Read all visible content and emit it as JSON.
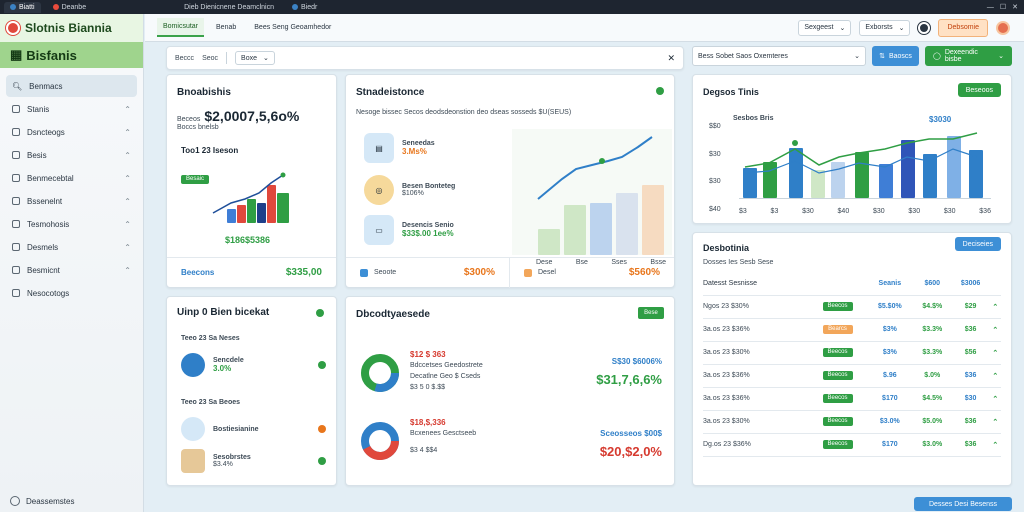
{
  "browser": {
    "tabs": [
      {
        "label": "Biatti"
      },
      {
        "label": "Deanbe"
      },
      {
        "label": "Dieb Dienicnene Deamclnicn"
      },
      {
        "label": "Biedr"
      }
    ]
  },
  "sidebar": {
    "app_title": "Slotnis Biannia",
    "brand": "Bisfanis",
    "items": [
      {
        "label": "Benmacs",
        "icon": "search-icon",
        "active": true
      },
      {
        "label": "Stanis",
        "icon": "list-icon"
      },
      {
        "label": "Dsncteogs",
        "icon": "box-icon"
      },
      {
        "label": "Besis",
        "icon": "chart-icon"
      },
      {
        "label": "Benmecebtal",
        "icon": "shop-icon"
      },
      {
        "label": "Bssenelnt",
        "icon": "cart-icon"
      },
      {
        "label": "Tesmohosis",
        "icon": "file-icon"
      },
      {
        "label": "Desmels",
        "icon": "gear-icon"
      },
      {
        "label": "Besmicnt",
        "icon": "doc-icon"
      },
      {
        "label": "Nesocotogs",
        "icon": "folder-icon"
      }
    ],
    "footer": "Deassemstes"
  },
  "topbar": {
    "tabs": [
      "Bomicsutar",
      "Benab",
      "Bees Seng Geoamhedor"
    ],
    "select1": "Sexgeest",
    "select2": "Exborsts",
    "button": "Debsomie"
  },
  "filter": {
    "label1": "Beccc",
    "label2": "Seoc",
    "select": "Boxe"
  },
  "right_filter": {
    "select": "Bess Sobet Saos Oxemteres",
    "btn1": "Baoscs",
    "btn2": "Dexeendic bisbe"
  },
  "revenue": {
    "title": "Bnoabishis",
    "label": "Beceos",
    "big": "$2,0007,5,6o%",
    "sub": "Boccs bnelsb",
    "total": "Too1 23 Iseson",
    "badge": "Besaic",
    "chart_value": "$186$5386",
    "foot_label": "Beecons",
    "foot_value": "$335,00"
  },
  "stores": {
    "title": "Stnadeistonce",
    "sub": "Nesoge bissec Secos deodsdeonstion deo dseas sosseds $U(SEUS)",
    "items": [
      {
        "name": "Seneedas",
        "pct": "3.Ms%"
      },
      {
        "name": "Besen Bonteteg",
        "pct": "$106%"
      },
      {
        "name": "Desencis Senio",
        "pct": "$33$.00 1ee%"
      }
    ],
    "xlabels": [
      "Dese",
      "Bse",
      "Sses",
      "Bsse"
    ],
    "foot1_label": "Seoote",
    "foot1_value": "$300%",
    "foot2_label": "Desel",
    "foot2_value": "$560%"
  },
  "unit": {
    "title": "Uinp 0 Bien bicekat",
    "group1": "Teeo 23 Sa Neses",
    "item1_name": "Sencdele",
    "item1_pct": "3.0%",
    "group2": "Teeo 23 Sa Beoes",
    "item2_name": "Bostiesianine",
    "item3_name": "Sesobrstes",
    "item3_pct": "$3.4%"
  },
  "distribution": {
    "title": "Dbcodtyaesede",
    "badge": "Bese",
    "d1_line1": "$12 $ 363",
    "d1_line2": "Bdccetses Geedostrete",
    "d1_line3": "Decatlne Geo $ Cseds",
    "d1_line4": "$3 5 0 $.$$",
    "d1_right_label": "S$30 $6006%",
    "d1_right_value": "$31,7,6,6%",
    "d2_line1": "$18,$,336",
    "d2_line2": "Bcxenees Gesctseeb",
    "d2_line3": "$3 4 $$4",
    "d2_right_label": "Sceosseos $00$",
    "d2_right_value": "$20,$2,0%"
  },
  "barchart": {
    "title": "Degsos Tinis",
    "badge": "Beseoos",
    "legend": "Sesbos Bris",
    "legend_value": "$3030",
    "ylabels": [
      "$$0",
      "$30",
      "$30",
      "$40"
    ],
    "xlabels": [
      "$3",
      "$3",
      "$30",
      "$40",
      "$30",
      "$30",
      "$30",
      "$36"
    ]
  },
  "table": {
    "title": "Desbotinia",
    "button": "Deciseies",
    "sub": "Dosses   Ies Sesb Sese",
    "headers": [
      "Datesst Sesnisse",
      "",
      "Seanis",
      "$600",
      "$3006",
      ""
    ],
    "rows": [
      {
        "c1": "Ngos 23 $30%",
        "pill": "Beecos",
        "pill_color": "g",
        "c3": "$5.$0%",
        "c4": "$4.$%",
        "c5": "$29",
        "c5color": "g"
      },
      {
        "c1": "3a.os 23 $36%",
        "pill": "Bearcs",
        "pill_color": "o",
        "c3": "$3%",
        "c4": "$3.3%",
        "c5": "$36",
        "c5color": "g"
      },
      {
        "c1": "3a.os 23 $30%",
        "pill": "Beecos",
        "pill_color": "g",
        "c3": "$3%",
        "c4": "$3.3%",
        "c5": "$56",
        "c5color": "g"
      },
      {
        "c1": "3a.os 23 $36%",
        "pill": "Beecos",
        "pill_color": "g",
        "c3": "$.96",
        "c4": "$.0%",
        "c5": "$36",
        "c5color": "b"
      },
      {
        "c1": "3a.os 23 $36%",
        "pill": "Beecos",
        "pill_color": "g",
        "c3": "$170",
        "c4": "$4.5%",
        "c5": "$30",
        "c5color": "b"
      },
      {
        "c1": "3a.os 23 $30%",
        "pill": "Beecos",
        "pill_color": "g",
        "c3": "$3.0%",
        "c4": "$5.0%",
        "c5": "$36",
        "c5color": "g"
      },
      {
        "c1": "Dg.os 23 $36%",
        "pill": "Beecos",
        "pill_color": "g",
        "c3": "$170",
        "c4": "$3.0%",
        "c5": "$36",
        "c5color": "g"
      }
    ],
    "foot_button": "Desses Desi Besenss"
  },
  "colors": {
    "green": "#2f9e44",
    "blue": "#3d8fd6",
    "orange": "#e8761c",
    "red": "#d63a2f"
  }
}
